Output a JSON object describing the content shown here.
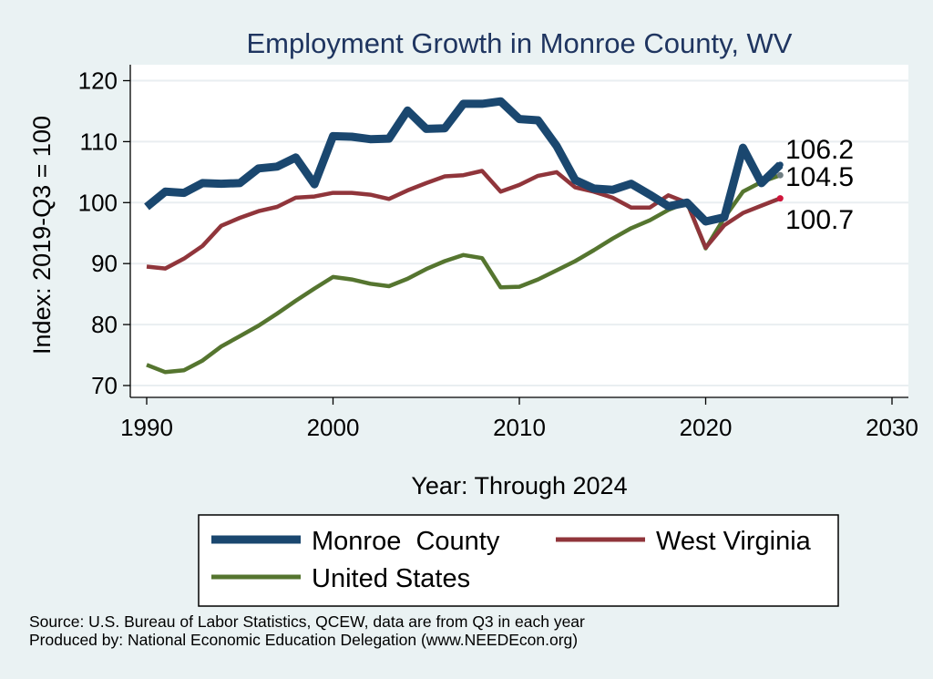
{
  "chart_data": {
    "type": "line",
    "title": "Employment Growth in Monroe County, WV",
    "xlabel": "Year: Through 2024",
    "ylabel": "Index: 2019-Q3 = 100",
    "xlim": [
      1990,
      2030
    ],
    "ylim": [
      70,
      120
    ],
    "x_ticks": [
      "1990",
      "2000",
      "2010",
      "2020",
      "2030"
    ],
    "y_ticks": [
      "70",
      "80",
      "90",
      "100",
      "110",
      "120"
    ],
    "grid": true,
    "legend_position": "bottom",
    "x": [
      1990,
      1991,
      1992,
      1993,
      1994,
      1995,
      1996,
      1997,
      1998,
      1999,
      2000,
      2001,
      2002,
      2003,
      2004,
      2005,
      2006,
      2007,
      2008,
      2009,
      2010,
      2011,
      2012,
      2013,
      2014,
      2015,
      2016,
      2017,
      2018,
      2019,
      2020,
      2021,
      2022,
      2023,
      2024
    ],
    "series": [
      {
        "name": "Monroe  County",
        "color": "#1a476f",
        "end_label": "106.2",
        "values": [
          99.3,
          101.8,
          101.6,
          103.2,
          103.1,
          103.2,
          105.6,
          105.9,
          107.4,
          103.0,
          110.9,
          110.8,
          110.4,
          110.5,
          115.1,
          112.1,
          112.2,
          116.2,
          116.2,
          116.6,
          113.7,
          113.5,
          109.3,
          103.7,
          102.3,
          102.1,
          103.1,
          101.3,
          99.4,
          100.0,
          96.9,
          97.6,
          109.0,
          103.2,
          106.2
        ]
      },
      {
        "name": "West Virginia",
        "color": "#90353b",
        "end_label": "100.7",
        "values": [
          89.5,
          89.2,
          90.8,
          92.9,
          96.2,
          97.5,
          98.6,
          99.3,
          100.8,
          101.0,
          101.6,
          101.6,
          101.3,
          100.6,
          102.0,
          103.2,
          104.3,
          104.5,
          105.2,
          101.8,
          102.9,
          104.4,
          105.0,
          102.5,
          101.8,
          100.8,
          99.2,
          99.2,
          101.2,
          100.0,
          92.6,
          96.3,
          98.3,
          99.5,
          100.7
        ]
      },
      {
        "name": "United States",
        "color": "#55752f",
        "end_label": "104.5",
        "values": [
          73.4,
          72.2,
          72.5,
          74.1,
          76.4,
          78.1,
          79.8,
          81.8,
          83.9,
          85.9,
          87.8,
          87.4,
          86.7,
          86.3,
          87.5,
          89.1,
          90.4,
          91.4,
          90.9,
          86.1,
          86.2,
          87.4,
          88.9,
          90.4,
          92.2,
          94.1,
          95.8,
          97.1,
          98.8,
          100.0,
          92.5,
          97.5,
          101.8,
          103.4,
          104.5
        ]
      }
    ]
  },
  "legend": {
    "items": [
      "Monroe  County",
      "West Virginia",
      "United States"
    ]
  },
  "source": {
    "line1": "Source: U.S. Bureau of Labor Statistics, QCEW, data are from Q3 in each year",
    "line2": "Produced by: National Economic Education Delegation (www.NEEDEcon.org)"
  }
}
